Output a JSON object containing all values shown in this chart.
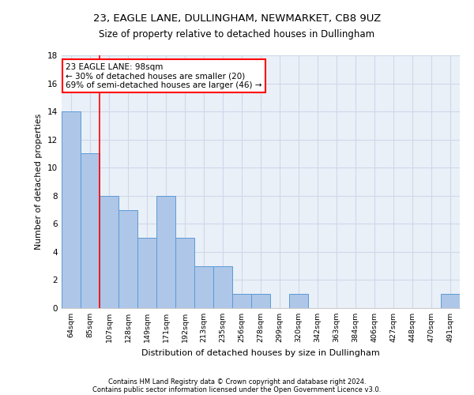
{
  "title1": "23, EAGLE LANE, DULLINGHAM, NEWMARKET, CB8 9UZ",
  "title2": "Size of property relative to detached houses in Dullingham",
  "xlabel": "Distribution of detached houses by size in Dullingham",
  "ylabel": "Number of detached properties",
  "categories": [
    "64sqm",
    "85sqm",
    "107sqm",
    "128sqm",
    "149sqm",
    "171sqm",
    "192sqm",
    "213sqm",
    "235sqm",
    "256sqm",
    "278sqm",
    "299sqm",
    "320sqm",
    "342sqm",
    "363sqm",
    "384sqm",
    "406sqm",
    "427sqm",
    "448sqm",
    "470sqm",
    "491sqm"
  ],
  "values": [
    14,
    11,
    8,
    7,
    5,
    8,
    5,
    3,
    3,
    1,
    1,
    0,
    1,
    0,
    0,
    0,
    0,
    0,
    0,
    0,
    1
  ],
  "bar_color": "#aec6e8",
  "bar_edge_color": "#5b9bd5",
  "annotation_box_text": "23 EAGLE LANE: 98sqm\n← 30% of detached houses are smaller (20)\n69% of semi-detached houses are larger (46) →",
  "annotation_box_color": "white",
  "annotation_box_edge_color": "red",
  "vline_color": "red",
  "vline_x": 1.5,
  "ylim": [
    0,
    18
  ],
  "yticks": [
    0,
    2,
    4,
    6,
    8,
    10,
    12,
    14,
    16,
    18
  ],
  "grid_color": "#d0d8e8",
  "bg_color": "#eaf0f8",
  "footer1": "Contains HM Land Registry data © Crown copyright and database right 2024.",
  "footer2": "Contains public sector information licensed under the Open Government Licence v3.0."
}
